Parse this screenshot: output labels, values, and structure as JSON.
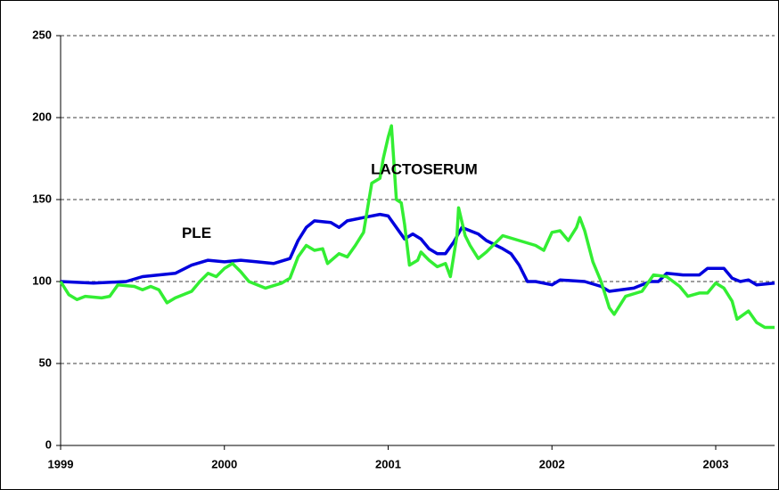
{
  "chart_data": {
    "type": "line",
    "xlim": [
      1999,
      2003.36
    ],
    "xticks": [
      1999,
      2000,
      2001,
      2002,
      2003
    ],
    "ylim": [
      0,
      250
    ],
    "yticks": [
      0,
      50,
      100,
      150,
      200,
      250
    ],
    "grid": true,
    "series": [
      {
        "name": "PLE",
        "color": "#0000dd",
        "x": [
          1999.0,
          1999.2,
          1999.4,
          1999.5,
          1999.7,
          1999.8,
          1999.9,
          2000.0,
          2000.1,
          2000.2,
          2000.3,
          2000.4,
          2000.45,
          2000.5,
          2000.55,
          2000.65,
          2000.7,
          2000.75,
          2000.85,
          2000.95,
          2001.0,
          2001.05,
          2001.1,
          2001.15,
          2001.2,
          2001.25,
          2001.3,
          2001.35,
          2001.4,
          2001.45,
          2001.5,
          2001.55,
          2001.6,
          2001.7,
          2001.75,
          2001.8,
          2001.85,
          2001.9,
          2002.0,
          2002.05,
          2002.2,
          2002.3,
          2002.35,
          2002.5,
          2002.6,
          2002.65,
          2002.7,
          2002.8,
          2002.9,
          2002.95,
          2003.05,
          2003.1,
          2003.15,
          2003.2,
          2003.25,
          2003.36
        ],
        "values": [
          100,
          99,
          100,
          103,
          105,
          110,
          113,
          112,
          113,
          112,
          111,
          114,
          125,
          133,
          137,
          136,
          133,
          137,
          139,
          141,
          140,
          133,
          126,
          129,
          126,
          120,
          117,
          117,
          124,
          133,
          131,
          129,
          125,
          120,
          117,
          110,
          100,
          100,
          98,
          101,
          100,
          97,
          94,
          96,
          100,
          100,
          105,
          104,
          104,
          108,
          108,
          102,
          100,
          101,
          98,
          99
        ]
      },
      {
        "name": "LACTOSERUM",
        "color": "#33ee33",
        "x": [
          1999.0,
          1999.05,
          1999.1,
          1999.15,
          1999.25,
          1999.3,
          1999.35,
          1999.45,
          1999.5,
          1999.55,
          1999.6,
          1999.65,
          1999.7,
          1999.8,
          1999.85,
          1999.9,
          1999.95,
          2000.0,
          2000.05,
          2000.1,
          2000.15,
          2000.25,
          2000.35,
          2000.4,
          2000.45,
          2000.5,
          2000.55,
          2000.6,
          2000.63,
          2000.7,
          2000.75,
          2000.8,
          2000.85,
          2000.9,
          2000.95,
          2000.97,
          2001.0,
          2001.02,
          2001.05,
          2001.08,
          2001.1,
          2001.13,
          2001.18,
          2001.2,
          2001.25,
          2001.3,
          2001.35,
          2001.38,
          2001.42,
          2001.43,
          2001.47,
          2001.5,
          2001.55,
          2001.6,
          2001.65,
          2001.7,
          2001.8,
          2001.9,
          2001.95,
          2002.0,
          2002.05,
          2002.1,
          2002.15,
          2002.17,
          2002.2,
          2002.25,
          2002.3,
          2002.35,
          2002.38,
          2002.45,
          2002.55,
          2002.62,
          2002.7,
          2002.78,
          2002.83,
          2002.9,
          2002.95,
          2003.0,
          2003.05,
          2003.1,
          2003.13,
          2003.2,
          2003.25,
          2003.3,
          2003.36
        ],
        "values": [
          100,
          92,
          89,
          91,
          90,
          91,
          98,
          97,
          95,
          97,
          95,
          87,
          90,
          94,
          100,
          105,
          103,
          108,
          111,
          106,
          100,
          96,
          99,
          102,
          115,
          122,
          119,
          120,
          111,
          117,
          115,
          122,
          130,
          160,
          163,
          175,
          188,
          195,
          150,
          148,
          135,
          110,
          113,
          118,
          113,
          109,
          111,
          103,
          128,
          145,
          128,
          122,
          114,
          118,
          123,
          128,
          125,
          122,
          119,
          130,
          131,
          125,
          133,
          139,
          131,
          112,
          100,
          84,
          80,
          91,
          94,
          104,
          103,
          97,
          91,
          93,
          93,
          99,
          96,
          88,
          77,
          82,
          75,
          72,
          72
        ]
      }
    ]
  }
}
